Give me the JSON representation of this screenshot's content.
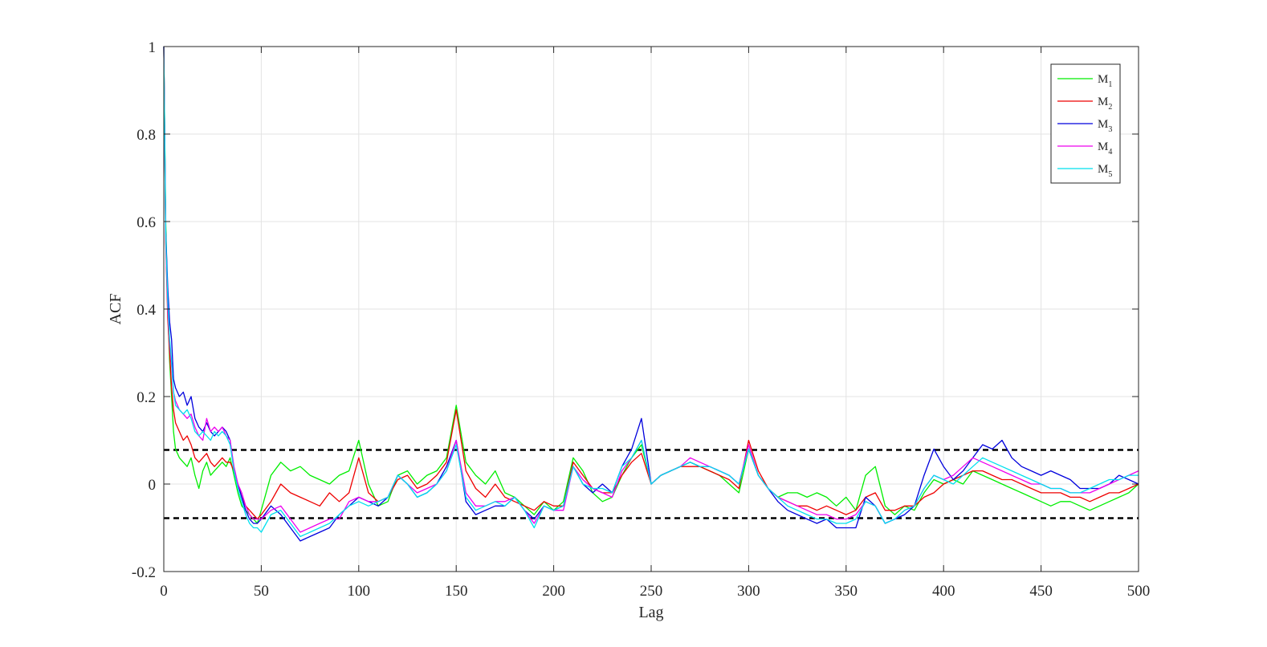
{
  "chart_data": {
    "type": "line",
    "xlabel": "Lag",
    "ylabel": "ACF",
    "xlim": [
      0,
      500
    ],
    "ylim": [
      -0.2,
      1
    ],
    "xticks": [
      0,
      50,
      100,
      150,
      200,
      250,
      300,
      350,
      400,
      450,
      500
    ],
    "yticks": [
      -0.2,
      0,
      0.2,
      0.4,
      0.6,
      0.8,
      1
    ],
    "xtick_labels": [
      "0",
      "50",
      "100",
      "150",
      "200",
      "250",
      "300",
      "350",
      "400",
      "450",
      "500"
    ],
    "ytick_labels": [
      "-0.2",
      "0",
      "0.2",
      "0.4",
      "0.6",
      "0.8",
      "1"
    ],
    "grid": true,
    "legend_position": "top-right",
    "confidence_bounds": [
      0.078,
      -0.078
    ],
    "x": [
      0,
      1,
      2,
      3,
      4,
      5,
      6,
      8,
      10,
      12,
      14,
      16,
      18,
      20,
      22,
      24,
      26,
      28,
      30,
      32,
      34,
      36,
      38,
      40,
      42,
      44,
      46,
      48,
      50,
      55,
      60,
      65,
      70,
      75,
      80,
      85,
      90,
      95,
      100,
      105,
      110,
      115,
      120,
      125,
      130,
      135,
      140,
      145,
      150,
      155,
      160,
      165,
      170,
      175,
      180,
      185,
      190,
      195,
      200,
      205,
      210,
      215,
      220,
      225,
      230,
      235,
      240,
      245,
      250,
      255,
      260,
      265,
      270,
      275,
      280,
      285,
      290,
      295,
      300,
      305,
      310,
      315,
      320,
      325,
      330,
      335,
      340,
      345,
      350,
      355,
      360,
      365,
      370,
      375,
      380,
      385,
      390,
      395,
      400,
      405,
      410,
      415,
      420,
      425,
      430,
      435,
      440,
      445,
      450,
      455,
      460,
      465,
      470,
      475,
      480,
      485,
      490,
      495,
      500
    ],
    "series": [
      {
        "name": "M1",
        "sub": "1",
        "color": "#00ee00",
        "values": [
          1,
          0.6,
          0.4,
          0.28,
          0.2,
          0.12,
          0.08,
          0.06,
          0.05,
          0.04,
          0.06,
          0.02,
          -0.01,
          0.03,
          0.05,
          0.02,
          0.03,
          0.04,
          0.05,
          0.04,
          0.06,
          0.02,
          -0.02,
          -0.05,
          -0.06,
          -0.07,
          -0.08,
          -0.09,
          -0.06,
          0.02,
          0.05,
          0.03,
          0.04,
          0.02,
          0.01,
          0.0,
          0.02,
          0.03,
          0.1,
          0.0,
          -0.05,
          -0.04,
          0.02,
          0.03,
          0.0,
          0.02,
          0.03,
          0.06,
          0.18,
          0.05,
          0.02,
          0.0,
          0.03,
          -0.02,
          -0.03,
          -0.05,
          -0.07,
          -0.04,
          -0.06,
          -0.04,
          0.06,
          0.03,
          -0.02,
          -0.04,
          -0.03,
          0.02,
          0.06,
          0.09,
          0.0,
          0.02,
          0.03,
          0.04,
          0.05,
          0.04,
          0.03,
          0.02,
          0.0,
          -0.02,
          0.08,
          0.02,
          -0.01,
          -0.03,
          -0.02,
          -0.02,
          -0.03,
          -0.02,
          -0.03,
          -0.05,
          -0.03,
          -0.06,
          0.02,
          0.04,
          -0.05,
          -0.07,
          -0.05,
          -0.06,
          -0.02,
          0.01,
          0.0,
          0.01,
          0.0,
          0.03,
          0.02,
          0.01,
          0.0,
          -0.01,
          -0.02,
          -0.03,
          -0.04,
          -0.05,
          -0.04,
          -0.04,
          -0.05,
          -0.06,
          -0.05,
          -0.04,
          -0.03,
          -0.02,
          0.0
        ]
      },
      {
        "name": "M2",
        "sub": "2",
        "color": "#ee0000",
        "values": [
          1,
          0.55,
          0.38,
          0.3,
          0.22,
          0.17,
          0.14,
          0.12,
          0.1,
          0.11,
          0.09,
          0.06,
          0.05,
          0.06,
          0.07,
          0.05,
          0.04,
          0.05,
          0.06,
          0.05,
          0.05,
          0.03,
          0.0,
          -0.03,
          -0.05,
          -0.06,
          -0.07,
          -0.08,
          -0.07,
          -0.04,
          0.0,
          -0.02,
          -0.03,
          -0.04,
          -0.05,
          -0.02,
          -0.04,
          -0.02,
          0.06,
          -0.02,
          -0.04,
          -0.03,
          0.01,
          0.02,
          -0.01,
          0.0,
          0.02,
          0.05,
          0.17,
          0.03,
          -0.01,
          -0.03,
          0.0,
          -0.03,
          -0.04,
          -0.05,
          -0.06,
          -0.04,
          -0.05,
          -0.05,
          0.05,
          0.02,
          -0.01,
          -0.02,
          -0.02,
          0.02,
          0.05,
          0.07,
          0.0,
          0.02,
          0.03,
          0.04,
          0.04,
          0.04,
          0.03,
          0.02,
          0.01,
          -0.01,
          0.1,
          0.03,
          -0.01,
          -0.03,
          -0.04,
          -0.05,
          -0.05,
          -0.06,
          -0.05,
          -0.06,
          -0.07,
          -0.06,
          -0.03,
          -0.02,
          -0.06,
          -0.06,
          -0.05,
          -0.05,
          -0.03,
          -0.02,
          0.0,
          0.01,
          0.02,
          0.03,
          0.03,
          0.02,
          0.01,
          0.01,
          0.0,
          -0.01,
          -0.02,
          -0.02,
          -0.02,
          -0.03,
          -0.03,
          -0.04,
          -0.03,
          -0.02,
          -0.02,
          -0.01,
          0.0
        ]
      },
      {
        "name": "M3",
        "sub": "3",
        "color": "#0000dd",
        "values": [
          1,
          0.58,
          0.45,
          0.37,
          0.33,
          0.24,
          0.22,
          0.2,
          0.21,
          0.18,
          0.2,
          0.15,
          0.13,
          0.12,
          0.14,
          0.12,
          0.11,
          0.12,
          0.13,
          0.12,
          0.1,
          0.03,
          0.0,
          -0.03,
          -0.06,
          -0.08,
          -0.09,
          -0.09,
          -0.08,
          -0.05,
          -0.07,
          -0.1,
          -0.13,
          -0.12,
          -0.11,
          -0.1,
          -0.07,
          -0.05,
          -0.03,
          -0.04,
          -0.05,
          -0.03,
          0.02,
          0.0,
          -0.03,
          -0.02,
          0.0,
          0.04,
          0.1,
          -0.04,
          -0.07,
          -0.06,
          -0.05,
          -0.05,
          -0.03,
          -0.06,
          -0.08,
          -0.05,
          -0.06,
          -0.05,
          0.04,
          0.0,
          -0.02,
          0.0,
          -0.02,
          0.04,
          0.08,
          0.15,
          0.0,
          0.02,
          0.03,
          0.04,
          0.05,
          0.04,
          0.04,
          0.03,
          0.02,
          0.0,
          0.08,
          0.02,
          -0.01,
          -0.04,
          -0.06,
          -0.07,
          -0.08,
          -0.09,
          -0.08,
          -0.1,
          -0.1,
          -0.1,
          -0.03,
          -0.05,
          -0.09,
          -0.08,
          -0.07,
          -0.05,
          0.02,
          0.08,
          0.04,
          0.01,
          0.03,
          0.06,
          0.09,
          0.08,
          0.1,
          0.06,
          0.04,
          0.03,
          0.02,
          0.03,
          0.02,
          0.01,
          -0.01,
          -0.01,
          -0.01,
          0.0,
          0.02,
          0.01,
          0.0
        ]
      },
      {
        "name": "M4",
        "sub": "4",
        "color": "#ee00ee",
        "values": [
          1,
          0.56,
          0.4,
          0.32,
          0.27,
          0.21,
          0.19,
          0.17,
          0.16,
          0.15,
          0.16,
          0.13,
          0.11,
          0.1,
          0.15,
          0.12,
          0.13,
          0.12,
          0.13,
          0.11,
          0.1,
          0.04,
          0.0,
          -0.02,
          -0.05,
          -0.07,
          -0.08,
          -0.08,
          -0.08,
          -0.06,
          -0.05,
          -0.08,
          -0.11,
          -0.1,
          -0.09,
          -0.08,
          -0.08,
          -0.04,
          -0.03,
          -0.04,
          -0.04,
          -0.03,
          0.02,
          0.0,
          -0.02,
          -0.01,
          0.0,
          0.03,
          0.1,
          -0.02,
          -0.05,
          -0.05,
          -0.04,
          -0.04,
          -0.03,
          -0.06,
          -0.09,
          -0.05,
          -0.06,
          -0.06,
          0.04,
          0.01,
          -0.01,
          -0.02,
          -0.03,
          0.03,
          0.06,
          0.1,
          0.0,
          0.02,
          0.03,
          0.04,
          0.06,
          0.05,
          0.04,
          0.03,
          0.02,
          0.0,
          0.09,
          0.02,
          -0.01,
          -0.03,
          -0.04,
          -0.05,
          -0.06,
          -0.07,
          -0.07,
          -0.08,
          -0.08,
          -0.07,
          -0.04,
          -0.05,
          -0.09,
          -0.08,
          -0.06,
          -0.05,
          -0.01,
          0.02,
          0.01,
          0.02,
          0.04,
          0.06,
          0.05,
          0.04,
          0.03,
          0.02,
          0.01,
          0.0,
          0.0,
          -0.01,
          -0.01,
          -0.02,
          -0.02,
          -0.02,
          -0.01,
          0.0,
          0.01,
          0.02,
          0.03
        ]
      },
      {
        "name": "M5",
        "sub": "5",
        "color": "#00e0ee",
        "values": [
          1,
          0.57,
          0.42,
          0.33,
          0.28,
          0.21,
          0.18,
          0.17,
          0.16,
          0.17,
          0.15,
          0.12,
          0.11,
          0.12,
          0.11,
          0.1,
          0.12,
          0.11,
          0.12,
          0.11,
          0.09,
          0.03,
          -0.01,
          -0.04,
          -0.07,
          -0.09,
          -0.1,
          -0.1,
          -0.11,
          -0.07,
          -0.06,
          -0.09,
          -0.12,
          -0.11,
          -0.1,
          -0.09,
          -0.07,
          -0.05,
          -0.04,
          -0.05,
          -0.04,
          -0.03,
          0.02,
          0.0,
          -0.03,
          -0.02,
          0.0,
          0.03,
          0.09,
          -0.03,
          -0.06,
          -0.05,
          -0.04,
          -0.05,
          -0.03,
          -0.06,
          -0.1,
          -0.05,
          -0.06,
          -0.05,
          0.04,
          0.0,
          -0.01,
          -0.01,
          -0.02,
          0.04,
          0.06,
          0.1,
          0.0,
          0.02,
          0.03,
          0.04,
          0.05,
          0.04,
          0.04,
          0.03,
          0.02,
          0.0,
          0.08,
          0.02,
          -0.01,
          -0.03,
          -0.05,
          -0.06,
          -0.07,
          -0.08,
          -0.08,
          -0.09,
          -0.09,
          -0.08,
          -0.04,
          -0.05,
          -0.09,
          -0.08,
          -0.06,
          -0.05,
          -0.01,
          0.02,
          0.01,
          0.0,
          0.02,
          0.04,
          0.06,
          0.05,
          0.04,
          0.03,
          0.02,
          0.01,
          0.0,
          -0.01,
          -0.01,
          -0.02,
          -0.02,
          -0.01,
          0.0,
          0.01,
          0.01,
          0.02,
          0.02
        ]
      }
    ]
  }
}
